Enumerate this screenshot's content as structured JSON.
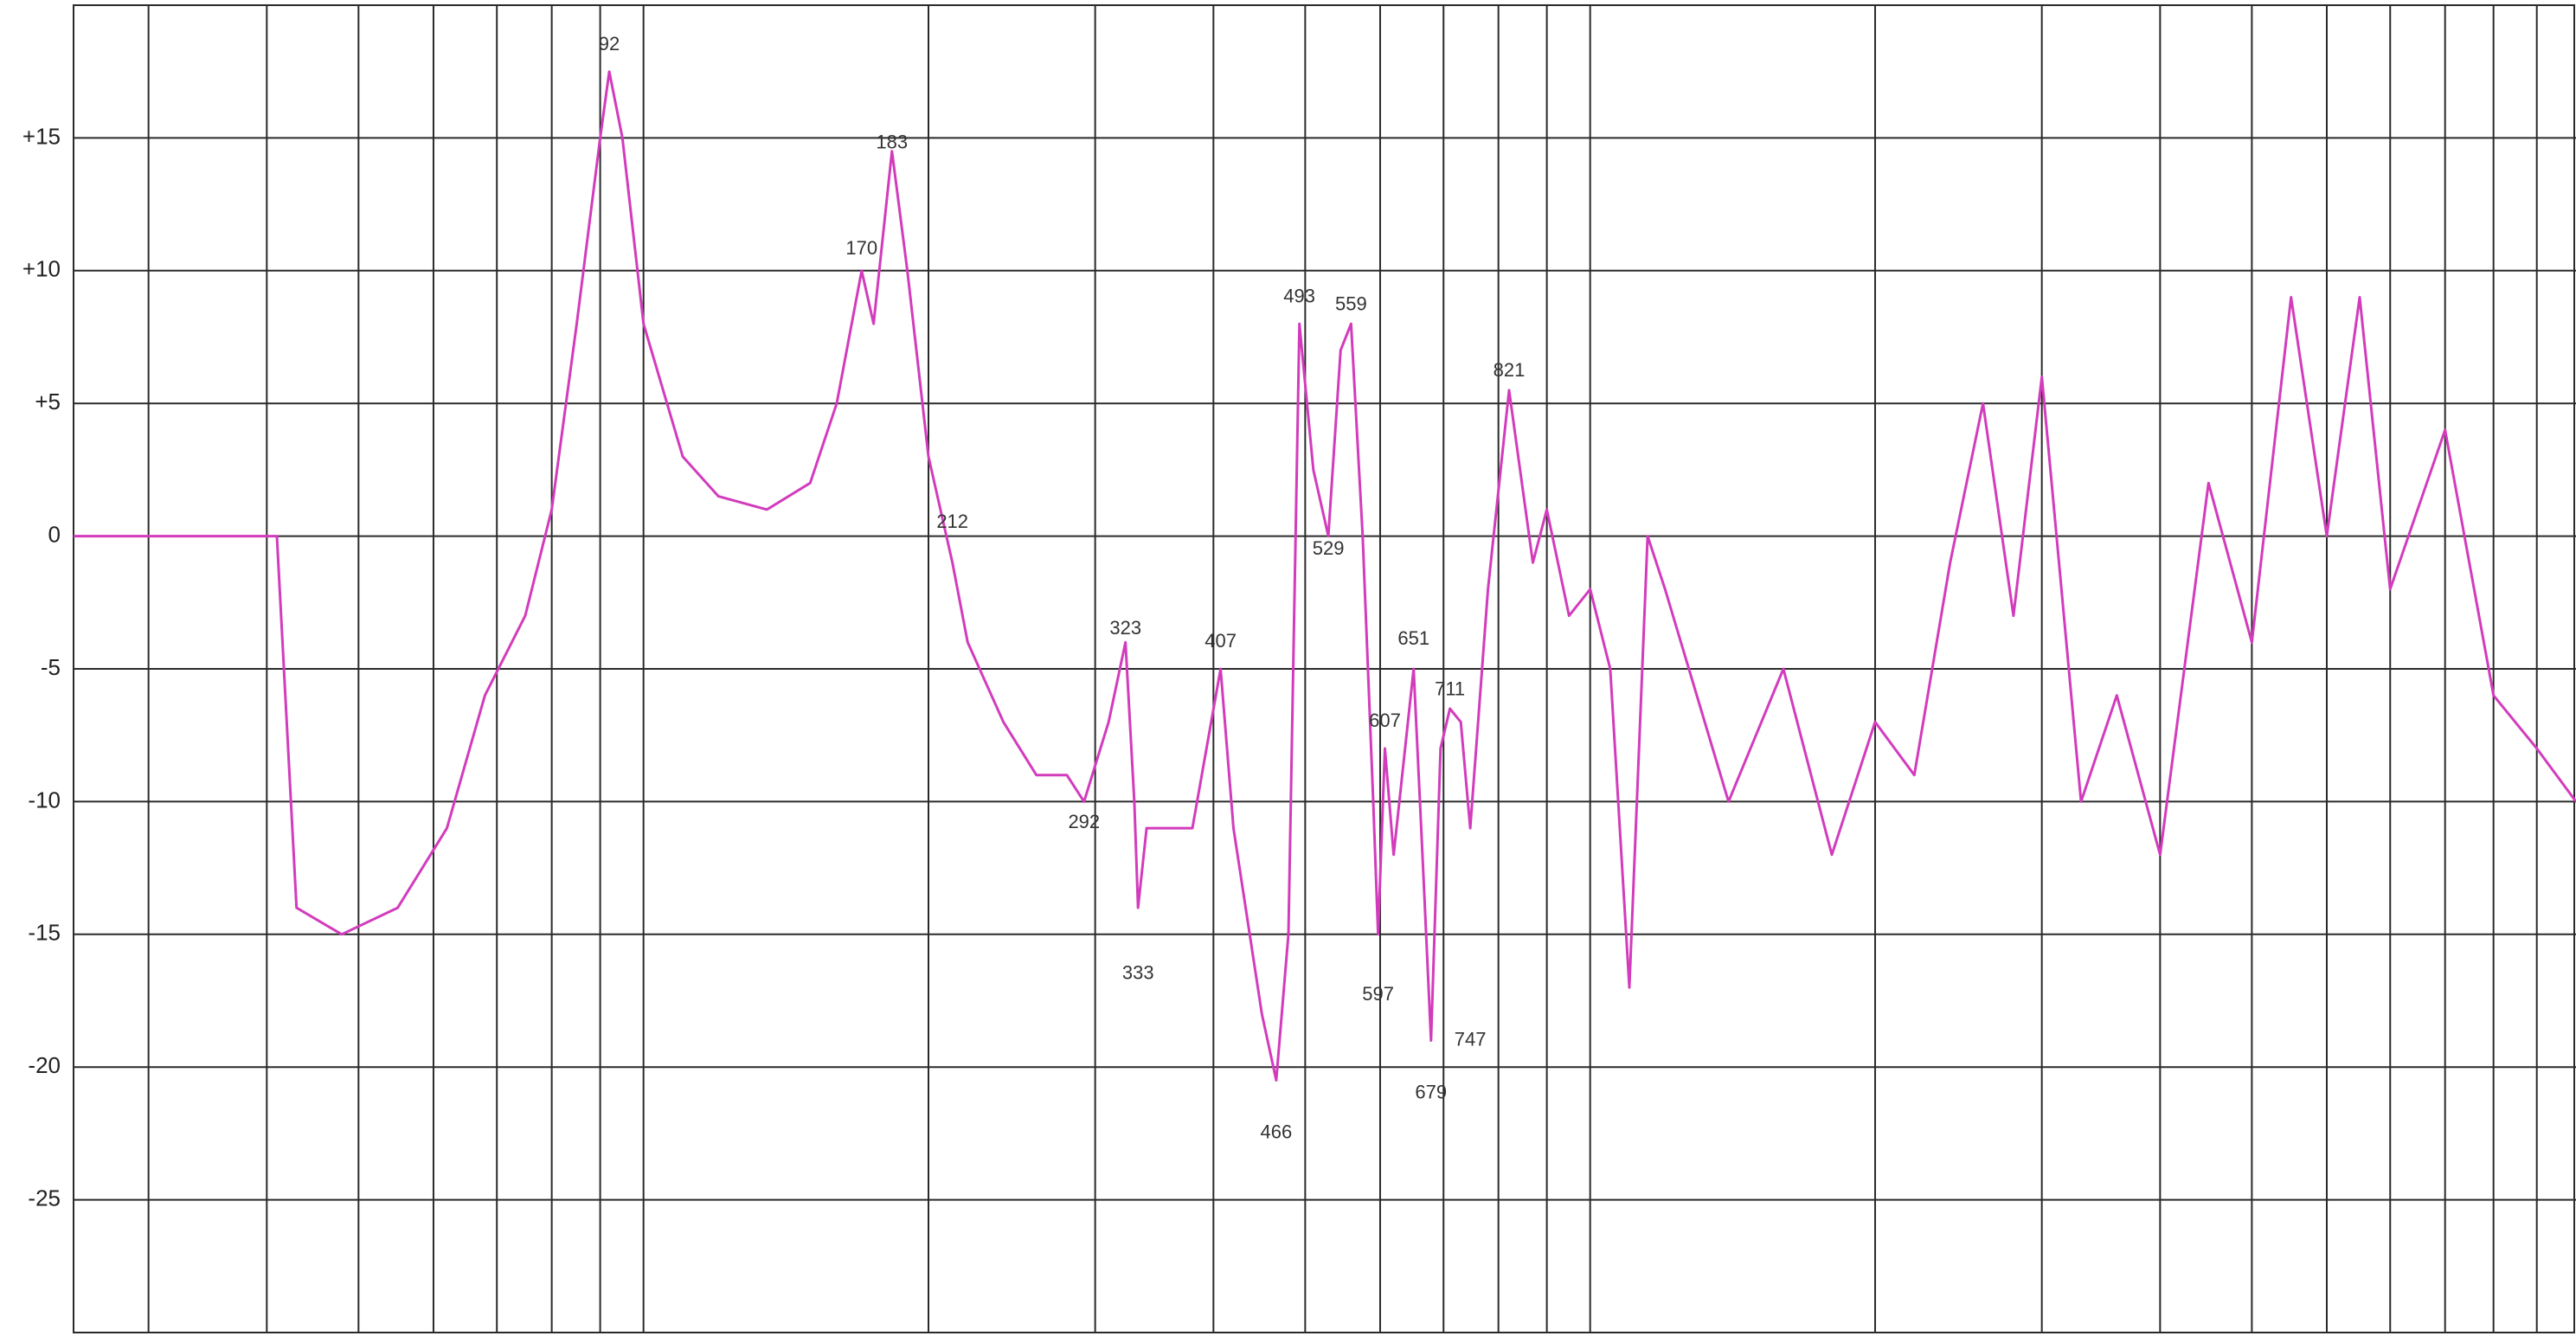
{
  "chart_data": {
    "type": "line",
    "xscale": "log",
    "grid": true,
    "xlim": [
      25,
      11000
    ],
    "ylim": [
      -30,
      20
    ],
    "yticks": [
      {
        "value": 15,
        "label": "+15"
      },
      {
        "value": 10,
        "label": "+10"
      },
      {
        "value": 5,
        "label": "+5"
      },
      0,
      -5,
      -10,
      -15,
      -20,
      -25
    ],
    "series": [
      {
        "color": "#d23cbc",
        "x": [
          25,
          41,
          43,
          48,
          55,
          62,
          68,
          75,
          80,
          85,
          90,
          92,
          95,
          100,
          110,
          120,
          135,
          150,
          160,
          170,
          175,
          183,
          190,
          200,
          212,
          220,
          240,
          260,
          280,
          292,
          310,
          323,
          330,
          333,
          340,
          380,
          407,
          420,
          450,
          466,
          480,
          493,
          510,
          529,
          545,
          559,
          575,
          590,
          597,
          607,
          620,
          651,
          665,
          679,
          695,
          711,
          730,
          747,
          780,
          821,
          870,
          900,
          950,
          1000,
          1050,
          1100,
          1150,
          1200,
          1400,
          1600,
          1800,
          2000,
          2200,
          2400,
          2600,
          2800,
          3000,
          3300,
          3600,
          4000,
          4500,
          5000,
          5500,
          6000,
          6500,
          7000,
          8000,
          9000,
          10000,
          11000
        ],
        "values": [
          0,
          0,
          -14,
          -15,
          -14,
          -11,
          -6,
          -3,
          1,
          8,
          15,
          17.5,
          15,
          8,
          3,
          1.5,
          1,
          2,
          5,
          10,
          8,
          14.5,
          10,
          3,
          -1,
          -4,
          -7,
          -9,
          -9,
          -10,
          -7,
          -4,
          -10,
          -14,
          -11,
          -11,
          -5,
          -11,
          -18,
          -20.5,
          -15,
          8,
          2.5,
          0,
          7,
          8,
          0,
          -10,
          -15,
          -8,
          -12,
          -5,
          -12,
          -19,
          -8,
          -6.5,
          -7,
          -11,
          -2,
          5.5,
          -1,
          1,
          -3,
          -2,
          -5,
          -17,
          0,
          -2,
          -10,
          -5,
          -12,
          -7,
          -9,
          -1,
          5,
          -3,
          6,
          -10,
          -6,
          -12,
          2,
          -4,
          9,
          0,
          9,
          -2,
          4,
          -6,
          -8,
          -10
        ]
      }
    ],
    "annotations": [
      {
        "text": "92",
        "x": 92,
        "y": 18.5
      },
      {
        "text": "170",
        "x": 170,
        "y": 10.8
      },
      {
        "text": "183",
        "x": 183,
        "y": 14.8
      },
      {
        "text": "212",
        "x": 212,
        "y": 0.5
      },
      {
        "text": "292",
        "x": 292,
        "y": -10.8
      },
      {
        "text": "323",
        "x": 323,
        "y": -3.5
      },
      {
        "text": "333",
        "x": 333,
        "y": -16.5
      },
      {
        "text": "407",
        "x": 407,
        "y": -4
      },
      {
        "text": "466",
        "x": 466,
        "y": -22.5
      },
      {
        "text": "493",
        "x": 493,
        "y": 9
      },
      {
        "text": "529",
        "x": 529,
        "y": -0.5
      },
      {
        "text": "559",
        "x": 559,
        "y": 8.7
      },
      {
        "text": "597",
        "x": 597,
        "y": -17.3
      },
      {
        "text": "607",
        "x": 607,
        "y": -7
      },
      {
        "text": "651",
        "x": 651,
        "y": -3.9
      },
      {
        "text": "679",
        "x": 679,
        "y": -21
      },
      {
        "text": "711",
        "x": 711,
        "y": -5.8
      },
      {
        "text": "747",
        "x": 747,
        "y": -19
      },
      {
        "text": "821",
        "x": 821,
        "y": 6.2
      }
    ]
  }
}
